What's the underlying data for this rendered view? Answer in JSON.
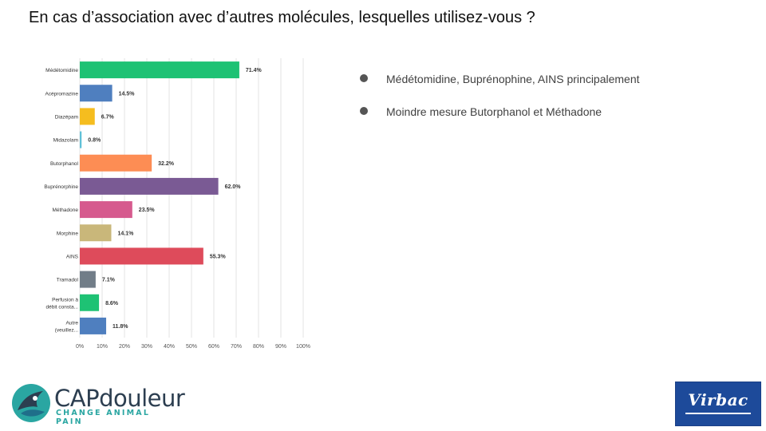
{
  "slide": {
    "title": "En cas d’association avec d’autres molécules,  lesquelles utilisez-vous ?"
  },
  "bullets": [
    "Médétomidine, Buprénophine, AINS principalement",
    "Moindre mesure Butorphanol et Méthadone"
  ],
  "logos": {
    "capdouleur_word": "CAPdouleur",
    "capdouleur_tagline": "CHANGE ANIMAL PAIN",
    "virbac_word": "Virbac"
  },
  "chart_data": {
    "type": "bar",
    "orientation": "horizontal",
    "categories": [
      [
        "Médétomidine"
      ],
      [
        "Acépromazine"
      ],
      [
        "Diazépam"
      ],
      [
        "Midazolam"
      ],
      [
        "Butorphanol"
      ],
      [
        "Buprénorphine"
      ],
      [
        "Méthadone"
      ],
      [
        "Morphine"
      ],
      [
        "AINS"
      ],
      [
        "Tramadol"
      ],
      [
        "Perfusion à",
        "débit consta..."
      ],
      [
        "Autre",
        "(veuillez..."
      ]
    ],
    "values": [
      71.4,
      14.5,
      6.7,
      0.8,
      32.2,
      62.0,
      23.5,
      14.1,
      55.3,
      7.1,
      8.6,
      11.8
    ],
    "value_labels": [
      "71.4%",
      "14.5%",
      "6.7%",
      "0.8%",
      "32.2%",
      "62.0%",
      "23.5%",
      "14.1%",
      "55.3%",
      "7.1%",
      "8.6%",
      "11.8%"
    ],
    "colors": [
      "#1ec274",
      "#4f7fbf",
      "#f5bd1f",
      "#5fc1d8",
      "#fd8d54",
      "#7a5a94",
      "#d65a8e",
      "#c9b77a",
      "#de4b5b",
      "#717d88",
      "#1ec274",
      "#4f7fbf"
    ],
    "xlim": [
      0,
      100
    ],
    "xticks": [
      "0%",
      "10%",
      "20%",
      "30%",
      "40%",
      "50%",
      "60%",
      "70%",
      "80%",
      "90%",
      "100%"
    ],
    "grid": true
  }
}
